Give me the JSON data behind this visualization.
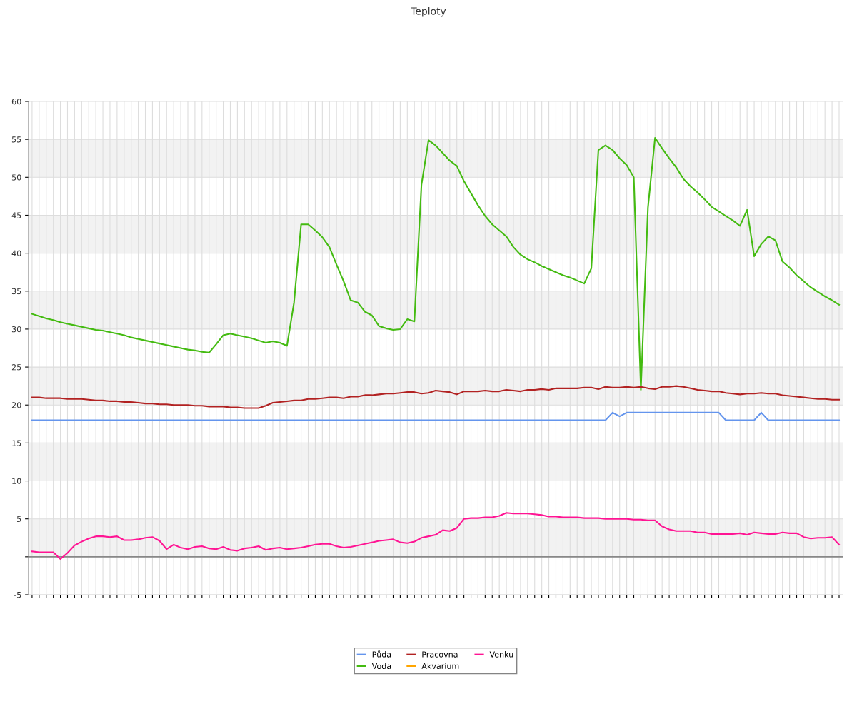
{
  "chart_data": {
    "type": "line",
    "title": "Teploty",
    "categories": [
      null,
      null,
      null,
      null,
      null,
      null,
      null,
      null,
      null,
      null,
      null,
      null,
      null,
      null,
      null,
      null,
      null,
      null,
      null,
      null,
      null,
      null,
      null,
      null,
      null,
      null,
      null,
      null,
      null,
      null,
      null,
      null,
      null,
      null,
      null,
      null,
      null,
      null,
      null,
      null,
      null,
      null,
      null,
      null,
      null,
      null,
      null,
      null,
      null,
      null,
      null,
      null,
      null,
      null,
      null,
      null,
      null,
      null,
      null,
      null,
      null,
      null,
      null,
      null,
      null,
      null,
      null,
      null,
      null,
      null,
      null,
      null,
      null,
      null,
      null,
      null,
      null,
      null,
      null,
      null,
      null,
      null,
      null,
      null,
      null,
      null,
      null,
      null,
      null,
      null,
      null,
      null,
      null,
      null,
      null,
      null,
      null,
      null,
      null,
      null,
      null,
      null,
      null,
      null,
      null,
      null,
      null,
      null,
      null,
      null,
      null,
      null,
      null,
      null,
      null
    ],
    "series": [
      {
        "name": "Půda",
        "color": "#6495ed",
        "values": [
          18,
          18,
          18,
          18,
          18,
          18,
          18,
          18,
          18,
          18,
          18,
          18,
          18,
          18,
          18,
          18,
          18,
          18,
          18,
          18,
          18,
          18,
          18,
          18,
          18,
          18,
          18,
          18,
          18,
          18,
          18,
          18,
          18,
          18,
          18,
          18,
          18,
          18,
          18,
          18,
          18,
          18,
          18,
          18,
          18,
          18,
          18,
          18,
          18,
          18,
          18,
          18,
          18,
          18,
          18,
          18,
          18,
          18,
          18,
          18,
          18,
          18,
          18,
          18,
          18,
          18,
          18,
          18,
          18,
          18,
          18,
          18,
          18,
          18,
          18,
          18,
          18,
          18,
          18,
          18,
          18,
          18,
          19,
          18.5,
          19,
          19,
          19,
          19,
          19,
          19,
          19,
          19,
          19,
          19,
          19,
          19,
          19,
          19,
          18,
          18,
          18,
          18,
          18,
          19,
          18,
          18,
          18,
          18,
          18,
          18,
          18,
          18,
          18,
          18,
          18
        ]
      },
      {
        "name": "Voda",
        "color": "#44bb11",
        "values": [
          32,
          31.7,
          31.4,
          31.2,
          30.9,
          30.7,
          30.5,
          30.3,
          30.1,
          29.9,
          29.8,
          29.6,
          29.4,
          29.2,
          28.9,
          28.7,
          28.5,
          28.3,
          28.1,
          27.9,
          27.7,
          27.5,
          27.3,
          27.2,
          27.0,
          26.9,
          28,
          29.2,
          29.4,
          29.2,
          29,
          28.8,
          28.5,
          28.2,
          28.4,
          28.2,
          27.8,
          33.5,
          43.8,
          43.8,
          43,
          42.1,
          40.8,
          38.5,
          36.3,
          33.8,
          33.5,
          32.3,
          31.8,
          30.4,
          30.1,
          29.9,
          30,
          31.3,
          31,
          49,
          54.9,
          54.2,
          53.2,
          52.2,
          51.5,
          49.5,
          47.9,
          46.3,
          44.9,
          43.8,
          43,
          42.2,
          40.8,
          39.8,
          39.2,
          38.8,
          38.3,
          37.9,
          37.5,
          37.1,
          36.8,
          36.4,
          36.0,
          38,
          53.6,
          54.2,
          53.6,
          52.5,
          51.6,
          50,
          22,
          46,
          55.2,
          53.8,
          52.5,
          51.3,
          49.8,
          48.8,
          48,
          47.1,
          46.1,
          45.5,
          44.9,
          44.3,
          43.6,
          45.7,
          39.6,
          41.2,
          42.2,
          41.7,
          38.9,
          38.1,
          37.1,
          36.3,
          35.5,
          34.9,
          34.3,
          33.8,
          33.2
        ]
      },
      {
        "name": "Pracovna",
        "color": "#b22222",
        "values": [
          21,
          21,
          20.9,
          20.9,
          20.9,
          20.8,
          20.8,
          20.8,
          20.7,
          20.6,
          20.6,
          20.5,
          20.5,
          20.4,
          20.4,
          20.3,
          20.2,
          20.2,
          20.1,
          20.1,
          20,
          20,
          20,
          19.9,
          19.9,
          19.8,
          19.8,
          19.8,
          19.7,
          19.7,
          19.6,
          19.6,
          19.6,
          19.9,
          20.3,
          20.4,
          20.5,
          20.6,
          20.6,
          20.8,
          20.8,
          20.9,
          21,
          21,
          20.9,
          21.1,
          21.1,
          21.3,
          21.3,
          21.4,
          21.5,
          21.5,
          21.6,
          21.7,
          21.7,
          21.5,
          21.6,
          21.9,
          21.8,
          21.7,
          21.4,
          21.8,
          21.8,
          21.8,
          21.9,
          21.8,
          21.8,
          22,
          21.9,
          21.8,
          22,
          22,
          22.1,
          22,
          22.2,
          22.2,
          22.2,
          22.2,
          22.3,
          22.3,
          22.1,
          22.4,
          22.3,
          22.3,
          22.4,
          22.3,
          22.4,
          22.2,
          22.1,
          22.4,
          22.4,
          22.5,
          22.4,
          22.2,
          22,
          21.9,
          21.8,
          21.8,
          21.6,
          21.5,
          21.4,
          21.5,
          21.5,
          21.6,
          21.5,
          21.5,
          21.3,
          21.2,
          21.1,
          21,
          20.9,
          20.8,
          20.8,
          20.7,
          20.7
        ]
      },
      {
        "name": "Akvarium",
        "color": "#ffa500",
        "values": [
          null,
          null,
          null,
          null,
          null,
          null,
          null,
          null,
          null,
          null,
          null,
          null,
          null,
          null,
          null,
          null,
          null,
          null,
          null,
          null,
          null,
          null,
          null,
          null,
          null,
          null,
          null,
          null,
          null,
          null,
          null,
          null,
          null,
          null,
          null,
          null,
          null,
          null,
          null,
          null,
          null,
          null,
          null,
          null,
          null,
          null,
          null,
          null,
          null,
          null,
          null,
          null,
          null,
          null,
          null,
          null,
          null,
          null,
          null,
          null,
          null,
          null,
          null,
          null,
          null,
          null,
          null,
          null,
          null,
          null,
          null,
          null,
          null,
          null,
          null,
          null,
          null,
          null,
          null,
          null,
          null,
          null,
          null,
          null,
          null,
          null,
          null,
          null,
          null,
          null,
          null,
          null,
          null,
          null,
          null,
          null,
          null,
          null,
          null,
          null,
          null,
          null,
          null,
          null,
          null,
          null,
          null,
          null,
          null,
          null,
          null,
          null,
          null,
          null,
          null
        ]
      },
      {
        "name": "Venku",
        "color": "#ff1493",
        "values": [
          0.7,
          0.6,
          0.6,
          0.6,
          -0.3,
          0.5,
          1.5,
          2,
          2.4,
          2.7,
          2.7,
          2.6,
          2.7,
          2.2,
          2.2,
          2.3,
          2.5,
          2.6,
          2.1,
          1.0,
          1.6,
          1.2,
          1.0,
          1.3,
          1.4,
          1.1,
          1.0,
          1.3,
          0.9,
          0.8,
          1.1,
          1.2,
          1.4,
          0.9,
          1.1,
          1.2,
          1.0,
          1.1,
          1.2,
          1.4,
          1.6,
          1.7,
          1.7,
          1.4,
          1.2,
          1.3,
          1.5,
          1.7,
          1.9,
          2.1,
          2.2,
          2.3,
          1.9,
          1.8,
          2.0,
          2.5,
          2.7,
          2.9,
          3.5,
          3.4,
          3.8,
          5.0,
          5.1,
          5.1,
          5.2,
          5.2,
          5.4,
          5.8,
          5.7,
          5.7,
          5.7,
          5.6,
          5.5,
          5.3,
          5.3,
          5.2,
          5.2,
          5.2,
          5.1,
          5.1,
          5.1,
          5.0,
          5.0,
          5.0,
          5.0,
          4.9,
          4.9,
          4.8,
          4.8,
          4.0,
          3.6,
          3.4,
          3.4,
          3.4,
          3.2,
          3.2,
          3.0,
          3.0,
          3.0,
          3.0,
          3.1,
          2.9,
          3.2,
          3.1,
          3.0,
          3.0,
          3.2,
          3.1,
          3.1,
          2.6,
          2.4,
          2.5,
          2.5,
          2.6,
          1.6
        ]
      }
    ],
    "ylim": [
      -5,
      60
    ],
    "yticks": [
      -5,
      {
        "value": 0,
        "label": null
      },
      5,
      10,
      15,
      20,
      25,
      30,
      35,
      40,
      45,
      50,
      55,
      60
    ],
    "bands": [
      {
        "axis": "y",
        "from": 0,
        "to": 5,
        "color": "#f2f2f2"
      },
      {
        "axis": "y",
        "from": 10,
        "to": 15,
        "color": "#f2f2f2"
      },
      {
        "axis": "y",
        "from": 20,
        "to": 25,
        "color": "#f2f2f2"
      },
      {
        "axis": "y",
        "from": 30,
        "to": 35,
        "color": "#f2f2f2"
      },
      {
        "axis": "y",
        "from": 40,
        "to": 45,
        "color": "#f2f2f2"
      },
      {
        "axis": "y",
        "from": 50,
        "to": 55,
        "color": "#f2f2f2"
      }
    ],
    "ref_lines": [
      {
        "axis": "y",
        "value": 0,
        "color": "#888888"
      }
    ],
    "grid": true,
    "legend": "bottom",
    "marker": "none",
    "line_style": "solid"
  }
}
